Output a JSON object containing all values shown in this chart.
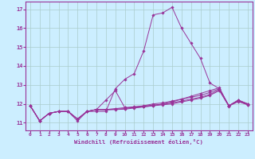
{
  "bg_color": "#cceeff",
  "grid_color": "#aacccc",
  "line_color": "#993399",
  "marker_color": "#993399",
  "xlabel": "Windchill (Refroidissement éolien,°C)",
  "xlabel_color": "#993399",
  "tick_color": "#993399",
  "spine_color": "#993399",
  "ylim": [
    10.6,
    17.4
  ],
  "xlim": [
    -0.5,
    23.5
  ],
  "yticks": [
    11,
    12,
    13,
    14,
    15,
    16,
    17
  ],
  "xticks": [
    0,
    1,
    2,
    3,
    4,
    5,
    6,
    7,
    8,
    9,
    10,
    11,
    12,
    13,
    14,
    15,
    16,
    17,
    18,
    19,
    20,
    21,
    22,
    23
  ],
  "lines": [
    [
      11.9,
      11.1,
      11.5,
      11.6,
      11.6,
      11.1,
      11.6,
      11.6,
      11.6,
      12.8,
      13.3,
      13.6,
      14.8,
      16.7,
      16.8,
      17.1,
      16.0,
      15.2,
      14.4,
      13.1,
      12.8,
      11.9,
      12.2,
      12.0
    ],
    [
      11.9,
      11.1,
      11.5,
      11.6,
      11.6,
      11.2,
      11.6,
      11.7,
      12.2,
      12.7,
      11.8,
      11.8,
      11.85,
      11.9,
      12.0,
      12.1,
      12.25,
      12.4,
      12.55,
      12.7,
      12.85,
      11.9,
      12.15,
      11.95
    ],
    [
      11.9,
      11.1,
      11.5,
      11.6,
      11.6,
      11.2,
      11.6,
      11.7,
      11.7,
      11.75,
      11.8,
      11.85,
      11.9,
      12.0,
      12.05,
      12.15,
      12.25,
      12.35,
      12.45,
      12.6,
      12.8,
      11.9,
      12.2,
      12.0
    ],
    [
      11.9,
      11.1,
      11.5,
      11.6,
      11.6,
      11.2,
      11.6,
      11.7,
      11.7,
      11.72,
      11.75,
      11.82,
      11.88,
      11.94,
      11.98,
      12.05,
      12.15,
      12.25,
      12.35,
      12.5,
      12.75,
      11.9,
      12.18,
      11.98
    ],
    [
      11.9,
      11.1,
      11.5,
      11.6,
      11.6,
      11.2,
      11.6,
      11.7,
      11.68,
      11.7,
      11.72,
      11.78,
      11.84,
      11.9,
      11.95,
      12.0,
      12.1,
      12.2,
      12.3,
      12.45,
      12.7,
      11.88,
      12.12,
      11.95
    ]
  ]
}
